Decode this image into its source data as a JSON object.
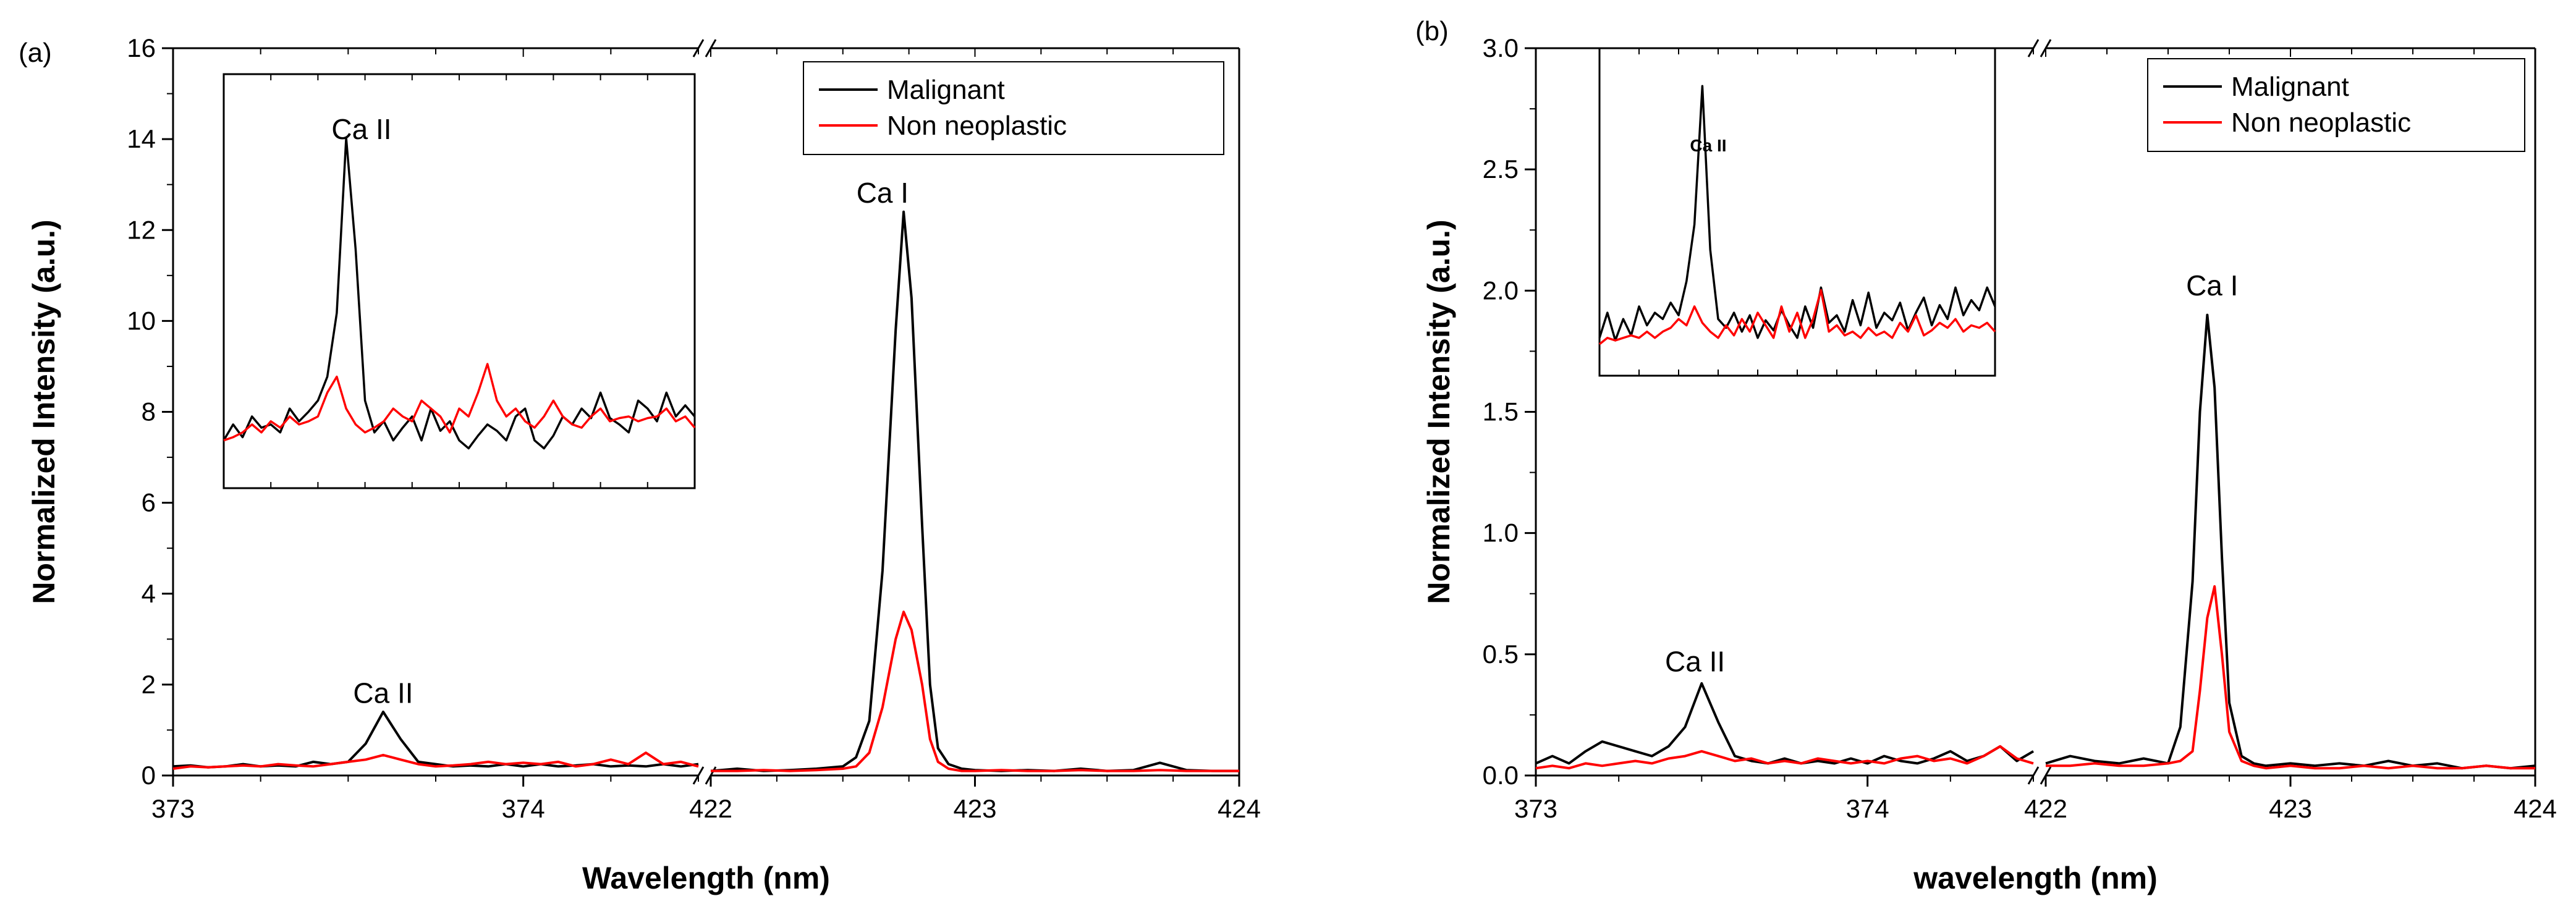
{
  "chart_data": [
    {
      "type": "line",
      "panel_label": "(a)",
      "xlabel": "Wavelength (nm)",
      "ylabel": "Normalized Intensity (a.u.)",
      "ylim": [
        0,
        16
      ],
      "yticks": [
        0,
        2,
        4,
        6,
        8,
        10,
        12,
        14,
        16
      ],
      "ytick_labels": [
        "0",
        "2",
        "4",
        "6",
        "8",
        "10",
        "12",
        "14",
        "16"
      ],
      "x_segments": [
        {
          "xlim": [
            373,
            374.5
          ],
          "ticks": [
            373,
            374
          ],
          "tick_labels": [
            "373",
            "374"
          ]
        },
        {
          "xlim": [
            422,
            424
          ],
          "ticks": [
            422,
            423,
            424
          ],
          "tick_labels": [
            "422",
            "423",
            "424"
          ]
        }
      ],
      "axis_break": true,
      "legend": {
        "placement": "top-right",
        "entries": [
          "Malignant",
          "Non neoplastic"
        ]
      },
      "series": [
        {
          "name": "Malignant",
          "color": "#000000",
          "segment1": {
            "x": [
              373.0,
              373.05,
              373.1,
              373.15,
              373.2,
              373.25,
              373.3,
              373.35,
              373.4,
              373.45,
              373.5,
              373.55,
              373.6,
              373.65,
              373.7,
              373.75,
              373.8,
              373.85,
              373.9,
              373.95,
              374.0,
              374.05,
              374.1,
              374.15,
              374.2,
              374.25,
              374.3,
              374.35,
              374.4,
              374.45,
              374.5
            ],
            "y": [
              0.2,
              0.22,
              0.18,
              0.2,
              0.25,
              0.2,
              0.22,
              0.2,
              0.3,
              0.25,
              0.3,
              0.7,
              1.4,
              0.8,
              0.3,
              0.25,
              0.2,
              0.22,
              0.2,
              0.25,
              0.2,
              0.25,
              0.2,
              0.22,
              0.25,
              0.2,
              0.22,
              0.2,
              0.25,
              0.2,
              0.25
            ]
          },
          "segment2": {
            "x": [
              422.0,
              422.1,
              422.2,
              422.3,
              422.4,
              422.5,
              422.55,
              422.6,
              422.65,
              422.7,
              422.73,
              422.76,
              422.8,
              422.83,
              422.86,
              422.9,
              422.95,
              423.0,
              423.1,
              423.2,
              423.3,
              423.4,
              423.5,
              423.6,
              423.7,
              423.8,
              423.9,
              424.0
            ],
            "y": [
              0.1,
              0.15,
              0.1,
              0.12,
              0.15,
              0.2,
              0.4,
              1.2,
              4.5,
              9.8,
              12.4,
              10.5,
              5.5,
              2.0,
              0.6,
              0.25,
              0.15,
              0.12,
              0.1,
              0.12,
              0.1,
              0.15,
              0.1,
              0.12,
              0.28,
              0.12,
              0.1,
              0.1
            ]
          }
        },
        {
          "name": "Non neoplastic",
          "color": "#ff0000",
          "segment1": {
            "x": [
              373.0,
              373.05,
              373.1,
              373.15,
              373.2,
              373.25,
              373.3,
              373.35,
              373.4,
              373.45,
              373.5,
              373.55,
              373.6,
              373.65,
              373.7,
              373.75,
              373.8,
              373.85,
              373.9,
              373.95,
              374.0,
              374.05,
              374.1,
              374.15,
              374.2,
              374.25,
              374.3,
              374.35,
              374.4,
              374.45,
              374.5
            ],
            "y": [
              0.15,
              0.2,
              0.18,
              0.2,
              0.22,
              0.2,
              0.25,
              0.22,
              0.2,
              0.25,
              0.3,
              0.35,
              0.45,
              0.35,
              0.25,
              0.2,
              0.22,
              0.25,
              0.3,
              0.25,
              0.28,
              0.25,
              0.3,
              0.2,
              0.25,
              0.35,
              0.25,
              0.5,
              0.25,
              0.3,
              0.2
            ]
          },
          "segment2": {
            "x": [
              422.0,
              422.1,
              422.2,
              422.3,
              422.4,
              422.5,
              422.55,
              422.6,
              422.65,
              422.7,
              422.73,
              422.76,
              422.8,
              422.83,
              422.86,
              422.9,
              422.95,
              423.0,
              423.1,
              423.2,
              423.3,
              423.4,
              423.5,
              423.6,
              423.7,
              423.8,
              423.9,
              424.0
            ],
            "y": [
              0.1,
              0.1,
              0.12,
              0.1,
              0.12,
              0.15,
              0.2,
              0.5,
              1.5,
              3.0,
              3.6,
              3.2,
              2.0,
              0.8,
              0.3,
              0.15,
              0.1,
              0.1,
              0.12,
              0.1,
              0.1,
              0.12,
              0.1,
              0.1,
              0.12,
              0.1,
              0.1,
              0.1
            ]
          }
        }
      ],
      "annotations": [
        {
          "text": "Ca II",
          "x": 373.6,
          "y": 1.6
        },
        {
          "text": "Ca I",
          "x": 422.65,
          "y": 12.6
        }
      ],
      "inset": {
        "annotation": "Ca II",
        "x": [
          0,
          2,
          4,
          6,
          8,
          10,
          12,
          14,
          16,
          18,
          20,
          22,
          24,
          26,
          28,
          30,
          32,
          34,
          36,
          38,
          40,
          42,
          44,
          46,
          48,
          50,
          52,
          54,
          56,
          58,
          60,
          62,
          64,
          66,
          68,
          70,
          72,
          74,
          76,
          78,
          80,
          82,
          84,
          86,
          88,
          90,
          92,
          94,
          96,
          98,
          100
        ],
        "series": [
          {
            "name": "Malignant",
            "color": "#000000",
            "y": [
              0.3,
              0.4,
              0.32,
              0.45,
              0.38,
              0.4,
              0.35,
              0.5,
              0.42,
              0.48,
              0.55,
              0.7,
              1.1,
              2.2,
              1.5,
              0.55,
              0.35,
              0.42,
              0.3,
              0.38,
              0.45,
              0.3,
              0.5,
              0.36,
              0.42,
              0.3,
              0.25,
              0.33,
              0.4,
              0.36,
              0.3,
              0.45,
              0.5,
              0.3,
              0.25,
              0.33,
              0.45,
              0.4,
              0.5,
              0.44,
              0.6,
              0.44,
              0.4,
              0.35,
              0.55,
              0.5,
              0.42,
              0.6,
              0.45,
              0.52,
              0.45
            ]
          },
          {
            "name": "Non neoplastic",
            "color": "#ff0000",
            "y": [
              0.3,
              0.32,
              0.35,
              0.4,
              0.35,
              0.42,
              0.38,
              0.45,
              0.4,
              0.42,
              0.45,
              0.6,
              0.7,
              0.5,
              0.4,
              0.35,
              0.38,
              0.42,
              0.5,
              0.45,
              0.42,
              0.55,
              0.5,
              0.45,
              0.35,
              0.5,
              0.45,
              0.6,
              0.78,
              0.55,
              0.45,
              0.5,
              0.42,
              0.38,
              0.45,
              0.55,
              0.45,
              0.4,
              0.38,
              0.45,
              0.5,
              0.42,
              0.44,
              0.45,
              0.42,
              0.44,
              0.45,
              0.5,
              0.42,
              0.45,
              0.38
            ]
          }
        ]
      }
    },
    {
      "type": "line",
      "panel_label": "(b)",
      "xlabel": "wavelength (nm)",
      "ylabel": "Normalized Intensity (a.u.)",
      "ylim": [
        0,
        3.0
      ],
      "yticks": [
        0,
        0.5,
        1.0,
        1.5,
        2.0,
        2.5,
        3.0
      ],
      "ytick_labels": [
        "0.0",
        "0.5",
        "1.0",
        "1.5",
        "2.0",
        "2.5",
        "3.0"
      ],
      "x_segments": [
        {
          "xlim": [
            373,
            374.5
          ],
          "ticks": [
            373,
            374
          ],
          "tick_labels": [
            "373",
            "374"
          ]
        },
        {
          "xlim": [
            422,
            424
          ],
          "ticks": [
            422,
            423,
            424
          ],
          "tick_labels": [
            "422",
            "423",
            "424"
          ]
        }
      ],
      "axis_break": true,
      "legend": {
        "placement": "top-right",
        "entries": [
          "Malignant",
          "Non neoplastic"
        ]
      },
      "series": [
        {
          "name": "Malignant",
          "color": "#000000",
          "segment1": {
            "x": [
              373.0,
              373.05,
              373.1,
              373.15,
              373.2,
              373.25,
              373.3,
              373.35,
              373.4,
              373.45,
              373.5,
              373.55,
              373.6,
              373.65,
              373.7,
              373.75,
              373.8,
              373.85,
              373.9,
              373.95,
              374.0,
              374.05,
              374.1,
              374.15,
              374.2,
              374.25,
              374.3,
              374.35,
              374.4,
              374.45,
              374.5
            ],
            "y": [
              0.05,
              0.08,
              0.05,
              0.1,
              0.14,
              0.12,
              0.1,
              0.08,
              0.12,
              0.2,
              0.38,
              0.22,
              0.08,
              0.06,
              0.05,
              0.07,
              0.05,
              0.06,
              0.05,
              0.07,
              0.05,
              0.08,
              0.06,
              0.05,
              0.07,
              0.1,
              0.06,
              0.08,
              0.12,
              0.06,
              0.1
            ]
          },
          "segment2": {
            "x": [
              422.0,
              422.1,
              422.2,
              422.3,
              422.4,
              422.5,
              422.55,
              422.6,
              422.63,
              422.66,
              422.69,
              422.72,
              422.75,
              422.8,
              422.85,
              422.9,
              423.0,
              423.1,
              423.2,
              423.3,
              423.4,
              423.5,
              423.6,
              423.7,
              423.8,
              423.9,
              424.0
            ],
            "y": [
              0.05,
              0.08,
              0.06,
              0.05,
              0.07,
              0.05,
              0.2,
              0.8,
              1.5,
              1.9,
              1.6,
              0.9,
              0.3,
              0.08,
              0.05,
              0.04,
              0.05,
              0.04,
              0.05,
              0.04,
              0.06,
              0.04,
              0.05,
              0.03,
              0.04,
              0.03,
              0.04
            ]
          }
        },
        {
          "name": "Non neoplastic",
          "color": "#ff0000",
          "segment1": {
            "x": [
              373.0,
              373.05,
              373.1,
              373.15,
              373.2,
              373.25,
              373.3,
              373.35,
              373.4,
              373.45,
              373.5,
              373.55,
              373.6,
              373.65,
              373.7,
              373.75,
              373.8,
              373.85,
              373.9,
              373.95,
              374.0,
              374.05,
              374.1,
              374.15,
              374.2,
              374.25,
              374.3,
              374.35,
              374.4,
              374.45,
              374.5
            ],
            "y": [
              0.03,
              0.04,
              0.03,
              0.05,
              0.04,
              0.05,
              0.06,
              0.05,
              0.07,
              0.08,
              0.1,
              0.08,
              0.06,
              0.07,
              0.05,
              0.06,
              0.05,
              0.07,
              0.06,
              0.05,
              0.06,
              0.05,
              0.07,
              0.08,
              0.06,
              0.07,
              0.05,
              0.08,
              0.12,
              0.07,
              0.05
            ]
          },
          "segment2": {
            "x": [
              422.0,
              422.1,
              422.2,
              422.3,
              422.4,
              422.5,
              422.55,
              422.6,
              422.63,
              422.66,
              422.69,
              422.72,
              422.75,
              422.8,
              422.85,
              422.9,
              423.0,
              423.1,
              423.2,
              423.3,
              423.4,
              423.5,
              423.6,
              423.7,
              423.8,
              423.9,
              424.0
            ],
            "y": [
              0.04,
              0.04,
              0.05,
              0.04,
              0.04,
              0.05,
              0.06,
              0.1,
              0.35,
              0.65,
              0.78,
              0.5,
              0.18,
              0.06,
              0.04,
              0.03,
              0.04,
              0.03,
              0.03,
              0.04,
              0.03,
              0.04,
              0.03,
              0.03,
              0.04,
              0.03,
              0.03
            ]
          }
        }
      ],
      "annotations": [
        {
          "text": "Ca II",
          "x": 373.48,
          "y": 0.43
        },
        {
          "text": "Ca I",
          "x": 422.68,
          "y": 1.98
        }
      ],
      "inset": {
        "annotation": "Ca II",
        "x": [
          0,
          2,
          4,
          6,
          8,
          10,
          12,
          14,
          16,
          18,
          20,
          22,
          24,
          26,
          28,
          30,
          32,
          34,
          36,
          38,
          40,
          42,
          44,
          46,
          48,
          50,
          52,
          54,
          56,
          58,
          60,
          62,
          64,
          66,
          68,
          70,
          72,
          74,
          76,
          78,
          80,
          82,
          84,
          86,
          88,
          90,
          92,
          94,
          96,
          98,
          100
        ],
        "series": [
          {
            "name": "Malignant",
            "color": "#000000",
            "y": [
              0.3,
              0.5,
              0.28,
              0.45,
              0.32,
              0.55,
              0.4,
              0.5,
              0.45,
              0.58,
              0.48,
              0.75,
              1.2,
              2.3,
              1.0,
              0.45,
              0.38,
              0.5,
              0.35,
              0.48,
              0.3,
              0.44,
              0.36,
              0.52,
              0.4,
              0.3,
              0.55,
              0.38,
              0.7,
              0.42,
              0.48,
              0.35,
              0.6,
              0.4,
              0.66,
              0.38,
              0.5,
              0.44,
              0.58,
              0.36,
              0.5,
              0.62,
              0.4,
              0.56,
              0.45,
              0.7,
              0.48,
              0.6,
              0.52,
              0.7,
              0.55
            ]
          },
          {
            "name": "Non neoplastic",
            "color": "#ff0000",
            "y": [
              0.25,
              0.3,
              0.28,
              0.3,
              0.32,
              0.3,
              0.35,
              0.3,
              0.35,
              0.38,
              0.45,
              0.4,
              0.55,
              0.42,
              0.35,
              0.3,
              0.4,
              0.32,
              0.45,
              0.35,
              0.5,
              0.4,
              0.3,
              0.55,
              0.35,
              0.5,
              0.3,
              0.45,
              0.68,
              0.35,
              0.4,
              0.32,
              0.35,
              0.3,
              0.38,
              0.32,
              0.35,
              0.3,
              0.42,
              0.35,
              0.48,
              0.32,
              0.36,
              0.42,
              0.38,
              0.45,
              0.35,
              0.4,
              0.38,
              0.42,
              0.35
            ]
          }
        ]
      }
    }
  ]
}
